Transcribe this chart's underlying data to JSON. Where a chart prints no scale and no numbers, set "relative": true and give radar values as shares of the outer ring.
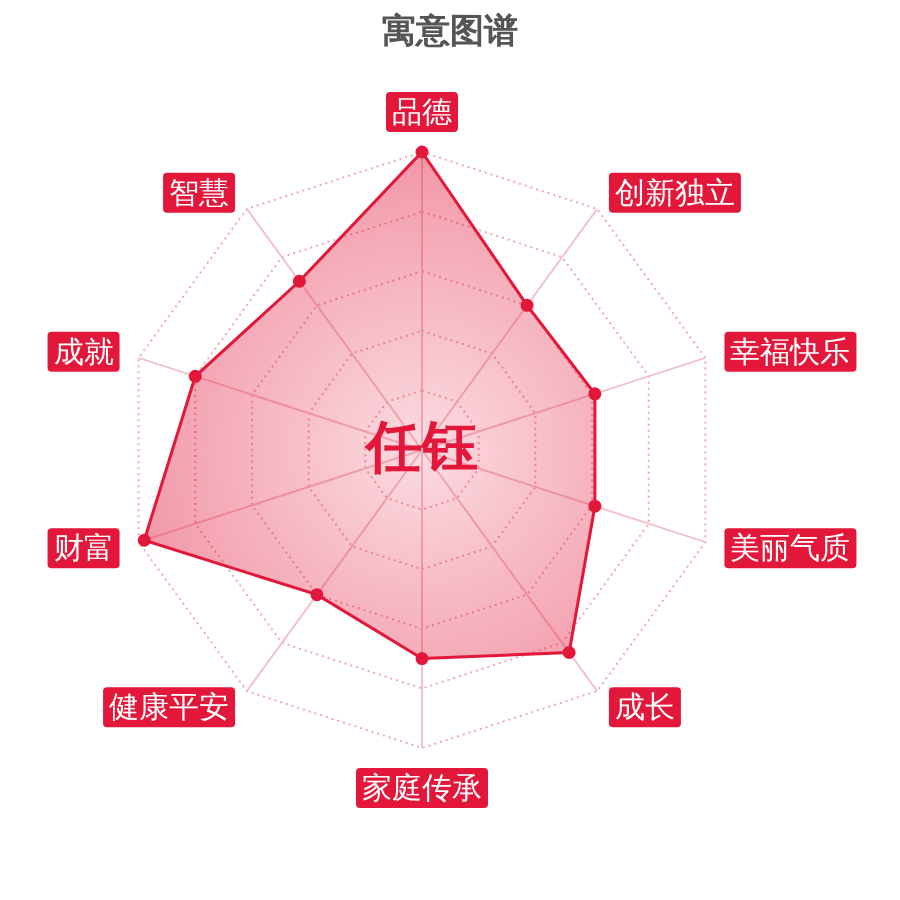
{
  "chart_data": {
    "type": "radar",
    "title": "寓意图谱",
    "categories": [
      "品德",
      "创新独立",
      "幸福快乐",
      "美丽气质",
      "成长",
      "家庭传承",
      "健康平安",
      "财富",
      "成就",
      "智慧"
    ],
    "relative": true,
    "series": [
      {
        "color": "#e2173a",
        "values": [
          1.0,
          0.6,
          0.61,
          0.61,
          0.84,
          0.7,
          0.6,
          0.98,
          0.8,
          0.7
        ]
      }
    ],
    "grid": true,
    "marker": "circle",
    "annotations": [
      "任钰"
    ]
  }
}
